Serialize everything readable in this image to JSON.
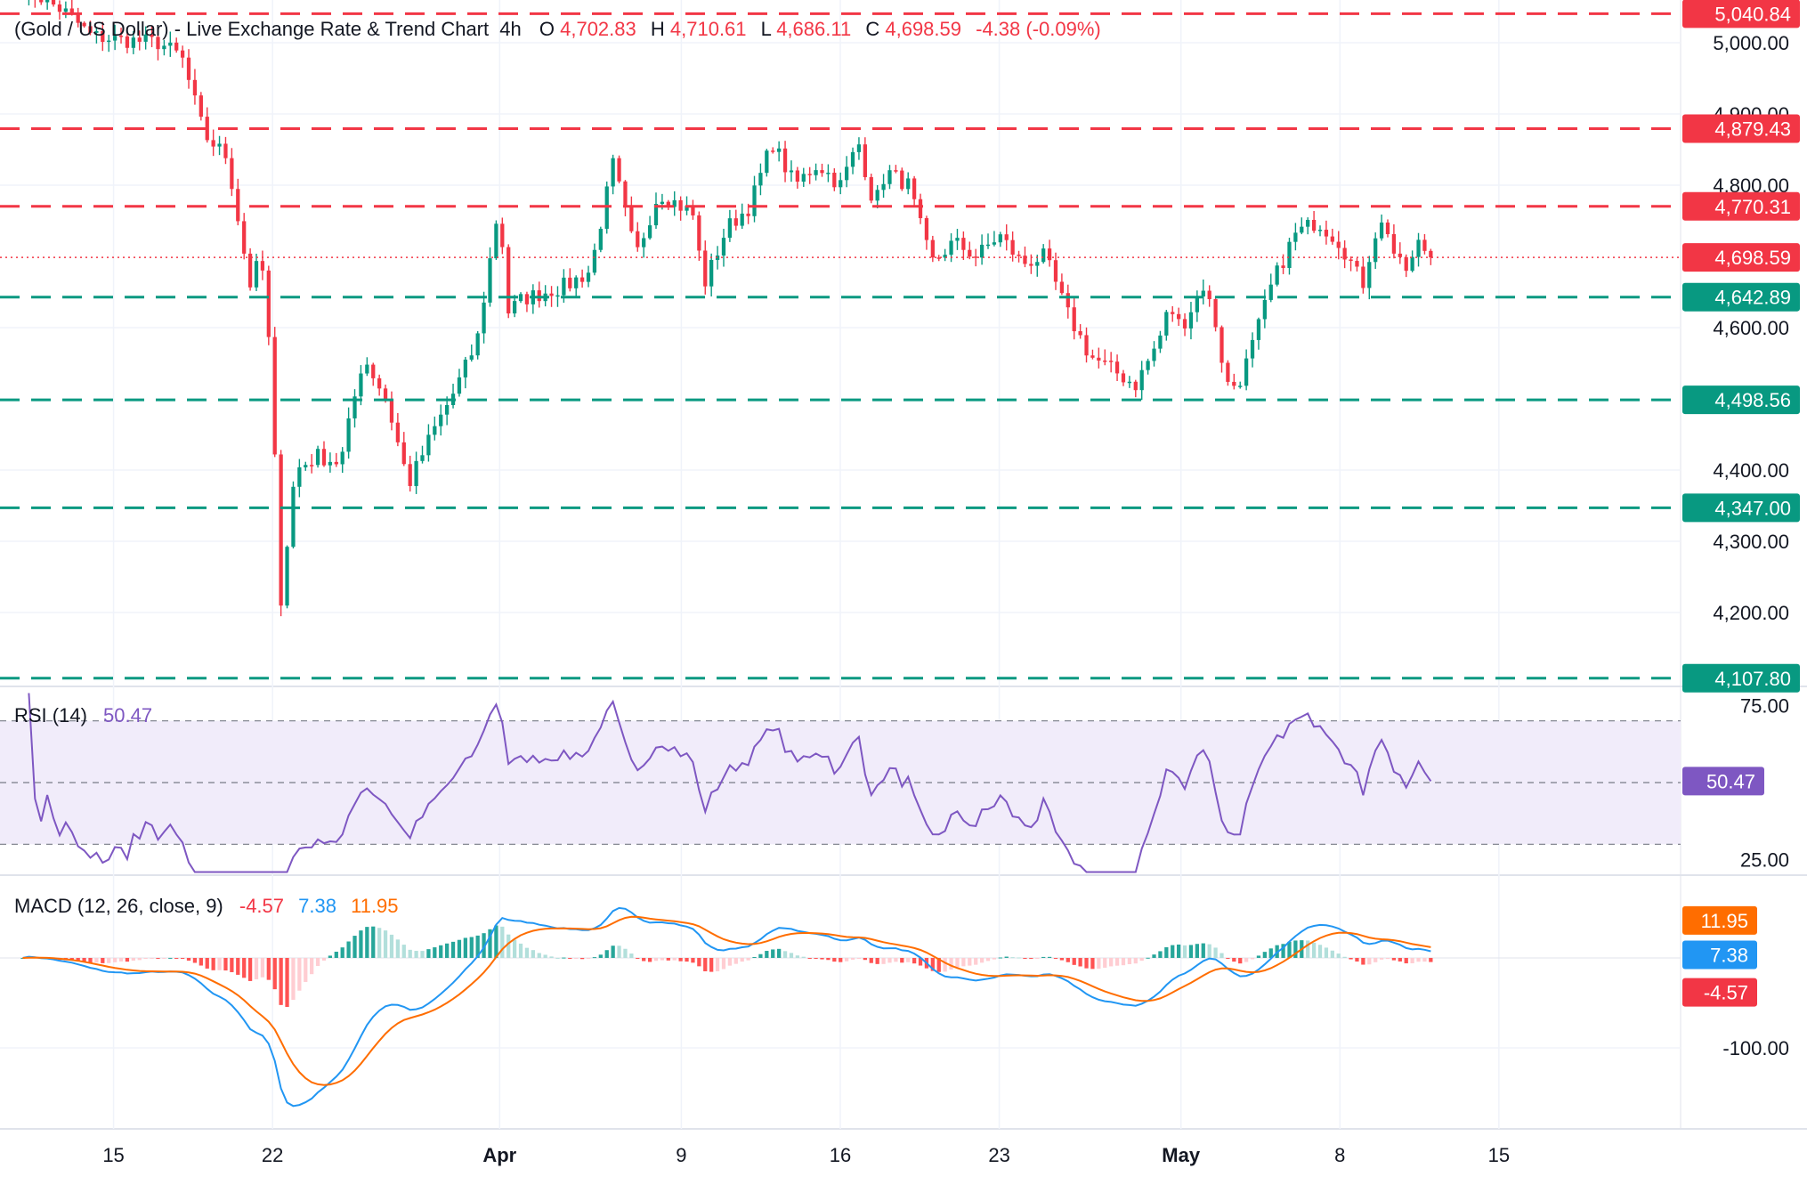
{
  "header": {
    "title": "(Gold / US Dollar) - Live Exchange Rate & Trend Chart",
    "interval": "4h",
    "open_label": "O",
    "open_value": "4,702.83",
    "high_label": "H",
    "high_value": "4,710.61",
    "low_label": "L",
    "low_value": "4,686.11",
    "close_label": "C",
    "close_value": "4,698.59",
    "change": "-4.38 (-0.09%)"
  },
  "colors": {
    "up": "#089981",
    "down": "#f23645",
    "rsi": "#7e57c2",
    "rsi_band": "#f1ecfa",
    "macd": "#2196f3",
    "signal": "#ff6d00",
    "grid": "#f0f3fa",
    "axis_text": "#131722"
  },
  "chart_data": [
    {
      "type": "candlestick",
      "title": "(Gold / US Dollar) - Live Exchange Rate & Trend Chart",
      "ylim": [
        4100,
        5060
      ],
      "y_ticks": [
        "5,000.00",
        "4,900.00",
        "4,800.00",
        "4,600.00",
        "4,400.00",
        "4,300.00",
        "4,200.00"
      ],
      "y_tick_values": [
        5000,
        4900,
        4800,
        4600,
        4400,
        4300,
        4200
      ],
      "x_ticks": [
        "15",
        "22",
        "Apr",
        "9",
        "16",
        "23",
        "May",
        "8",
        "15"
      ],
      "x_tick_days": [
        4,
        11,
        21,
        29,
        36,
        43,
        51,
        58,
        65
      ],
      "x_range_days": [
        -1,
        73
      ],
      "price_path": [
        [
          0,
          5080
        ],
        [
          2,
          5040
        ],
        [
          3,
          5010
        ],
        [
          4,
          5005
        ],
        [
          6,
          5000
        ],
        [
          7,
          4980
        ],
        [
          8,
          4870
        ],
        [
          9,
          4840
        ],
        [
          10,
          4660
        ],
        [
          10.5,
          4700
        ],
        [
          11,
          4520
        ],
        [
          11.3,
          4200
        ],
        [
          12,
          4400
        ],
        [
          13,
          4420
        ],
        [
          14,
          4410
        ],
        [
          15,
          4560
        ],
        [
          16,
          4500
        ],
        [
          17,
          4380
        ],
        [
          18,
          4450
        ],
        [
          19,
          4510
        ],
        [
          20,
          4580
        ],
        [
          20.5,
          4680
        ],
        [
          21,
          4780
        ],
        [
          21.3,
          4620
        ],
        [
          22,
          4640
        ],
        [
          24,
          4660
        ],
        [
          25,
          4680
        ],
        [
          26,
          4830
        ],
        [
          27,
          4700
        ],
        [
          28,
          4790
        ],
        [
          29,
          4770
        ],
        [
          29.5,
          4760
        ],
        [
          30,
          4660
        ],
        [
          31,
          4740
        ],
        [
          32,
          4770
        ],
        [
          33,
          4860
        ],
        [
          34,
          4800
        ],
        [
          35,
          4830
        ],
        [
          36,
          4800
        ],
        [
          36.8,
          4860
        ],
        [
          37.5,
          4770
        ],
        [
          38,
          4820
        ],
        [
          39,
          4800
        ],
        [
          40,
          4690
        ],
        [
          41,
          4720
        ],
        [
          42,
          4700
        ],
        [
          43,
          4730
        ],
        [
          44,
          4690
        ],
        [
          45,
          4700
        ],
        [
          46,
          4620
        ],
        [
          47,
          4560
        ],
        [
          48,
          4540
        ],
        [
          49,
          4520
        ],
        [
          50,
          4580
        ],
        [
          50.5,
          4630
        ],
        [
          51,
          4600
        ],
        [
          52,
          4660
        ],
        [
          52.5,
          4610
        ],
        [
          53,
          4520
        ],
        [
          53.5,
          4520
        ],
        [
          54,
          4560
        ],
        [
          55,
          4660
        ],
        [
          56,
          4730
        ],
        [
          57,
          4750
        ],
        [
          58,
          4720
        ],
        [
          59,
          4660
        ],
        [
          59.5,
          4730
        ],
        [
          60,
          4750
        ],
        [
          60.5,
          4690
        ],
        [
          61,
          4680
        ],
        [
          61.5,
          4720
        ],
        [
          62,
          4698.59
        ]
      ],
      "candle_count": 230,
      "levels": [
        {
          "value": 5040.84,
          "label": "5,040.84",
          "kind": "resistance"
        },
        {
          "value": 4879.43,
          "label": "4,879.43",
          "kind": "resistance"
        },
        {
          "value": 4770.31,
          "label": "4,770.31",
          "kind": "resistance"
        },
        {
          "value": 4642.89,
          "label": "4,642.89",
          "kind": "support"
        },
        {
          "value": 4498.56,
          "label": "4,498.56",
          "kind": "support"
        },
        {
          "value": 4347.0,
          "label": "4,347.00",
          "kind": "support"
        },
        {
          "value": 4107.8,
          "label": "4,107.80",
          "kind": "support"
        }
      ],
      "last_price": {
        "value": 4698.59,
        "label": "4,698.59"
      }
    },
    {
      "type": "line",
      "title": "RSI (14)",
      "value_label": "50.47",
      "ylim": [
        20,
        80
      ],
      "y_ticks": [
        "75.00",
        "25.00"
      ],
      "y_tick_values": [
        75,
        25
      ],
      "band": [
        30,
        70
      ],
      "midline": 50,
      "last_value": 50.47
    },
    {
      "type": "line",
      "title": "MACD (12, 26, close, 9)",
      "values_printed": [
        "-4.57",
        "7.38",
        "11.95"
      ],
      "ylim": [
        -190,
        90
      ],
      "y_ticks": [
        "-100.00"
      ],
      "y_tick_values": [
        -100
      ],
      "series": [
        {
          "name": "MACD",
          "last": 7.38,
          "label": "7.38"
        },
        {
          "name": "Signal",
          "last": 11.95,
          "label": "11.95"
        },
        {
          "name": "Histogram",
          "last": -4.57,
          "label": "-4.57"
        }
      ]
    }
  ]
}
